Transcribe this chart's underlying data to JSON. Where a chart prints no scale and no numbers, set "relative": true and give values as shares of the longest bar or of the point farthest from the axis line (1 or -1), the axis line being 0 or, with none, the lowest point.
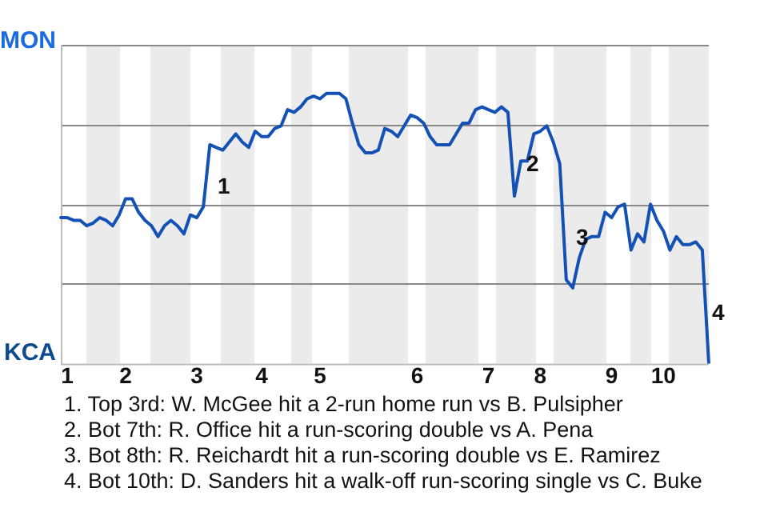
{
  "chart_data": {
    "type": "line",
    "relative": true,
    "categories": [
      null,
      "1",
      null,
      null,
      null,
      null,
      null,
      null,
      null,
      null,
      "2",
      null,
      null,
      null,
      null,
      null,
      null,
      null,
      null,
      null,
      null,
      "3",
      null,
      null,
      null,
      null,
      null,
      null,
      null,
      null,
      null,
      "4",
      null,
      null,
      null,
      null,
      null,
      null,
      null,
      null,
      "5",
      null,
      null,
      null,
      null,
      null,
      null,
      null,
      null,
      null,
      null,
      null,
      null,
      null,
      null,
      "6",
      null,
      null,
      null,
      null,
      null,
      null,
      null,
      null,
      null,
      null,
      "7",
      null,
      null,
      null,
      null,
      null,
      null,
      null,
      "8",
      null,
      null,
      null,
      null,
      null,
      null,
      null,
      null,
      null,
      null,
      "9",
      null,
      null,
      null,
      null,
      null,
      null,
      null,
      "10",
      null,
      null,
      null,
      null,
      null,
      null,
      null
    ],
    "series": [
      {
        "color": "#1451b5",
        "values": [
          0.54,
          0.54,
          0.53,
          0.53,
          0.51,
          0.52,
          0.54,
          0.53,
          0.51,
          0.55,
          0.61,
          0.61,
          0.56,
          0.53,
          0.51,
          0.47,
          0.51,
          0.53,
          0.51,
          0.48,
          0.55,
          0.54,
          0.58,
          0.81,
          0.8,
          0.79,
          0.82,
          0.85,
          0.82,
          0.8,
          0.86,
          0.84,
          0.84,
          0.87,
          0.88,
          0.94,
          0.93,
          0.95,
          0.98,
          0.99,
          0.98,
          1,
          1,
          1,
          0.98,
          0.89,
          0.81,
          0.78,
          0.78,
          0.79,
          0.87,
          0.86,
          0.84,
          0.88,
          0.92,
          0.91,
          0.89,
          0.84,
          0.81,
          0.81,
          0.81,
          0.85,
          0.89,
          0.89,
          0.94,
          0.95,
          0.94,
          0.93,
          0.95,
          0.93,
          0.62,
          0.75,
          0.75,
          0.85,
          0.86,
          0.88,
          0.82,
          0.74,
          0.31,
          0.28,
          0.39,
          0.46,
          0.47,
          0.47,
          0.56,
          0.54,
          0.58,
          0.59,
          0.42,
          0.48,
          0.45,
          0.59,
          0.53,
          0.49,
          0.42,
          0.47,
          0.44,
          0.44,
          0.45,
          0.42,
          0
        ]
      }
    ],
    "grid": "y",
    "annotations": [
      "MON",
      "KCA",
      "1",
      "2",
      "3",
      "4",
      "1. Top 3rd: W. McGee hit a 2-run home run vs B. Pulsipher",
      "2. Bot 7th: R. Office hit a run-scoring double vs A. Pena",
      "3. Bot 8th: R. Reichardt hit a run-scoring double vs E. Ramirez",
      "4. Bot 10th: D. Sanders hit a walk-off run-scoring single vs C. Buke"
    ],
    "legend": false,
    "marker": "none",
    "line_style": "solid"
  }
}
